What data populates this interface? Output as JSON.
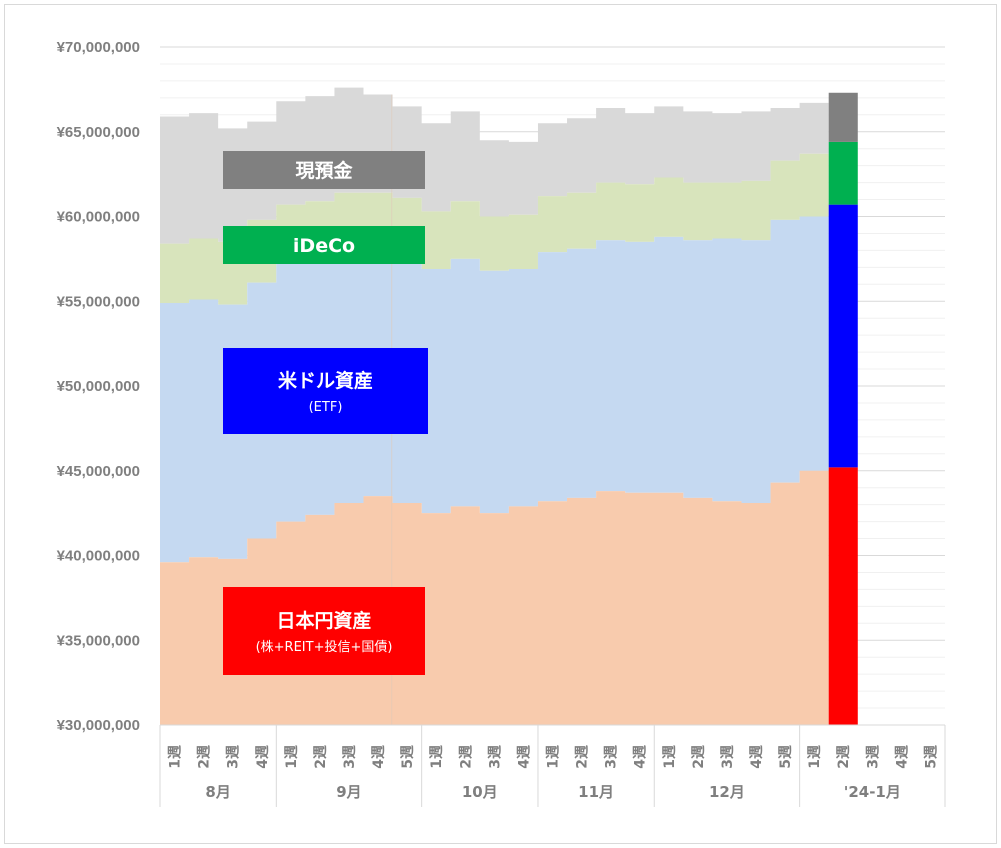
{
  "chart_data": {
    "type": "area",
    "stacked": true,
    "y_ticks": [
      "¥70,000,000",
      "¥65,000,000",
      "¥60,000,000",
      "¥55,000,000",
      "¥50,000,000",
      "¥45,000,000",
      "¥40,000,000",
      "¥35,000,000",
      "¥30,000,000"
    ],
    "ylim": [
      30000000,
      70000000
    ],
    "grid": true,
    "x_weeks": [
      "1週",
      "2週",
      "3週",
      "4週",
      "1週",
      "2週",
      "3週",
      "4週",
      "5週",
      "1週",
      "2週",
      "3週",
      "4週",
      "1週",
      "2週",
      "3週",
      "4週",
      "1週",
      "2週",
      "3週",
      "4週",
      "5週",
      "1週",
      "2週",
      "3週",
      "4週",
      "5週"
    ],
    "months": [
      {
        "label": "8月",
        "weeks": 4
      },
      {
        "label": "9月",
        "weeks": 5
      },
      {
        "label": "10月",
        "weeks": 4
      },
      {
        "label": "11月",
        "weeks": 4
      },
      {
        "label": "12月",
        "weeks": 5
      },
      {
        "label": "'24-1月",
        "weeks": 5
      }
    ],
    "current_week_index": 23,
    "series": [
      {
        "name": "日本円資産",
        "subtitle": "(株+REIT+投信+国債)",
        "color": "#ff0000",
        "area_color": "#f8cbad",
        "totals": [
          39600000,
          39900000,
          39800000,
          41000000,
          42000000,
          42400000,
          43100000,
          43500000,
          43100000,
          42500000,
          42900000,
          42500000,
          42900000,
          43200000,
          43400000,
          43800000,
          43700000,
          43700000,
          43400000,
          43200000,
          43100000,
          44300000,
          45000000,
          45200000
        ]
      },
      {
        "name": "米ドル資産",
        "subtitle": "(ETF)",
        "color": "#0000ff",
        "area_color": "#c5d9f1",
        "totals": [
          54900000,
          55100000,
          54800000,
          56100000,
          57400000,
          57200000,
          57600000,
          57500000,
          57400000,
          56900000,
          57500000,
          56800000,
          56900000,
          57900000,
          58100000,
          58600000,
          58500000,
          58800000,
          58600000,
          58700000,
          58600000,
          59800000,
          60000000,
          60700000
        ]
      },
      {
        "name": "iDeCo",
        "subtitle": "",
        "color": "#00b050",
        "area_color": "#d8e4bc",
        "totals": [
          58400000,
          58700000,
          58500000,
          59800000,
          60700000,
          60900000,
          61400000,
          61400000,
          61100000,
          60300000,
          60900000,
          60000000,
          60100000,
          61200000,
          61400000,
          62000000,
          61900000,
          62300000,
          62000000,
          62000000,
          62100000,
          63300000,
          63700000,
          64400000
        ]
      },
      {
        "name": "現預金",
        "subtitle": "",
        "color": "#808080",
        "area_color": "#d9d9d9",
        "totals": [
          65900000,
          66100000,
          65200000,
          65600000,
          66800000,
          67100000,
          67600000,
          67200000,
          66500000,
          65500000,
          66200000,
          64500000,
          64400000,
          65500000,
          65800000,
          66400000,
          66100000,
          66500000,
          66200000,
          66100000,
          66200000,
          66400000,
          66700000,
          67300000
        ]
      }
    ]
  }
}
